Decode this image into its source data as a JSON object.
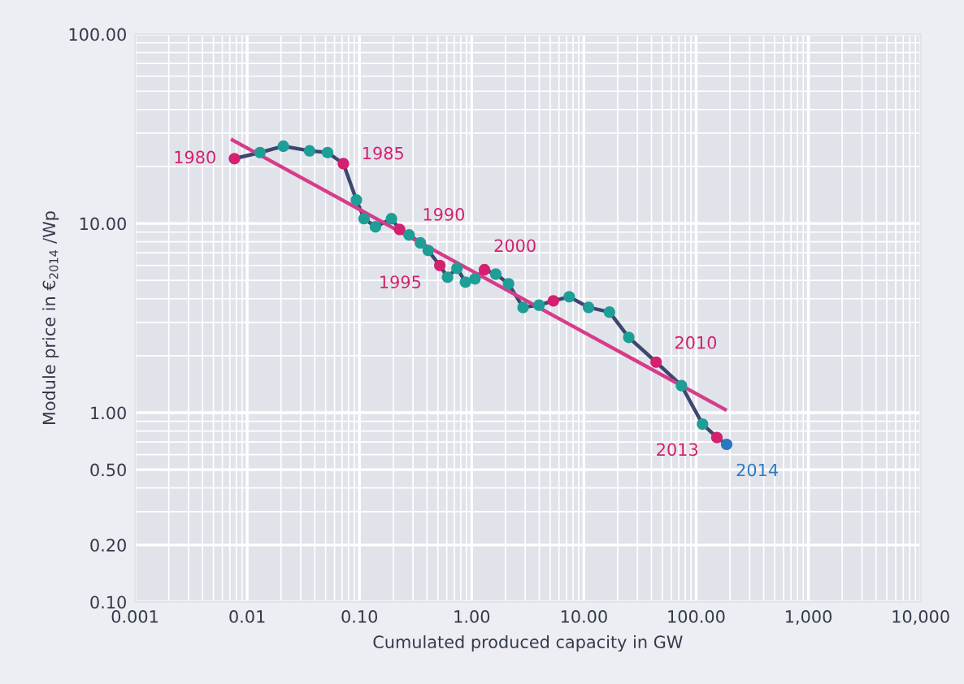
{
  "chart_data": {
    "type": "line",
    "xlabel": "Cumulated produced capacity in GW",
    "ylabel": "Module price in €$_{2014}$ /Wp",
    "log": "xy",
    "grid": true,
    "marker": "circle",
    "line_style": "solid",
    "xlim": [
      0.001,
      10000
    ],
    "ylim": [
      0.1,
      100
    ],
    "xticks": [
      {
        "value": 0.001,
        "label": "0.001"
      },
      {
        "value": 0.01,
        "label": "0.01"
      },
      {
        "value": 0.1,
        "label": "0.10"
      },
      {
        "value": 1,
        "label": "1.00"
      },
      {
        "value": 10,
        "label": "10.00"
      },
      {
        "value": 100,
        "label": "100.00"
      },
      {
        "value": 1000,
        "label": "1,000"
      },
      {
        "value": 10000,
        "label": "10,000"
      }
    ],
    "yticks": [
      {
        "value": 0.1,
        "label": "0.10"
      },
      {
        "value": 0.2,
        "label": "0.20"
      },
      {
        "value": 0.5,
        "label": "0.50"
      },
      {
        "value": 1,
        "label": "1.00"
      },
      {
        "value": 10,
        "label": "10.00"
      },
      {
        "value": 100,
        "label": "100.00"
      }
    ],
    "series": [
      {
        "color": "#3d4770",
        "x": [
          0.0077,
          0.013,
          0.021,
          0.036,
          0.052,
          0.072,
          0.094,
          0.11,
          0.139,
          0.193,
          0.228,
          0.277,
          0.349,
          0.41,
          0.52,
          0.61,
          0.74,
          0.88,
          1.07,
          1.3,
          1.64,
          2.13,
          2.87,
          3.98,
          5.35,
          7.4,
          11.0,
          16.9,
          25.1,
          44,
          74,
          114,
          153,
          187
        ],
        "values": [
          22,
          23.7,
          25.6,
          24.2,
          23.7,
          20.7,
          13.3,
          10.6,
          9.6,
          10.6,
          9.3,
          8.7,
          7.9,
          7.2,
          6.0,
          5.2,
          5.8,
          4.9,
          5.1,
          5.7,
          5.4,
          4.8,
          3.6,
          3.7,
          3.9,
          4.1,
          3.6,
          3.4,
          2.5,
          1.85,
          1.39,
          0.87,
          0.74,
          0.68
        ],
        "colors": [
          "#d4206e",
          "#1e9e96",
          "#1e9e96",
          "#1e9e96",
          "#1e9e96",
          "#d4206e",
          "#1e9e96",
          "#1e9e96",
          "#1e9e96",
          "#1e9e96",
          "#d4206e",
          "#1e9e96",
          "#1e9e96",
          "#1e9e96",
          "#d4206e",
          "#1e9e96",
          "#1e9e96",
          "#1e9e96",
          "#1e9e96",
          "#d4206e",
          "#1e9e96",
          "#1e9e96",
          "#1e9e96",
          "#1e9e96",
          "#d4206e",
          "#1e9e96",
          "#1e9e96",
          "#1e9e96",
          "#1e9e96",
          "#d4206e",
          "#1e9e96",
          "#1e9e96",
          "#d4206e",
          "#2a78c2"
        ]
      },
      {
        "color": "#d63c8a",
        "marker": "none",
        "x": [
          0.0074,
          181
        ],
        "values": [
          27.6,
          1.04
        ]
      }
    ],
    "annotations": [
      {
        "text": "1980",
        "x": 0.0077,
        "y": 22
      },
      {
        "text": "1985",
        "x": 0.072,
        "y": 20.7
      },
      {
        "text": "1990",
        "x": 0.228,
        "y": 9.3
      },
      {
        "text": "1995",
        "x": 0.52,
        "y": 6.0
      },
      {
        "text": "2000",
        "x": 1.3,
        "y": 5.7
      },
      {
        "text": "2010",
        "x": 44,
        "y": 1.85
      },
      {
        "text": "2013",
        "x": 153,
        "y": 0.74
      },
      {
        "text": "2014",
        "x": 187,
        "y": 0.68
      }
    ]
  }
}
